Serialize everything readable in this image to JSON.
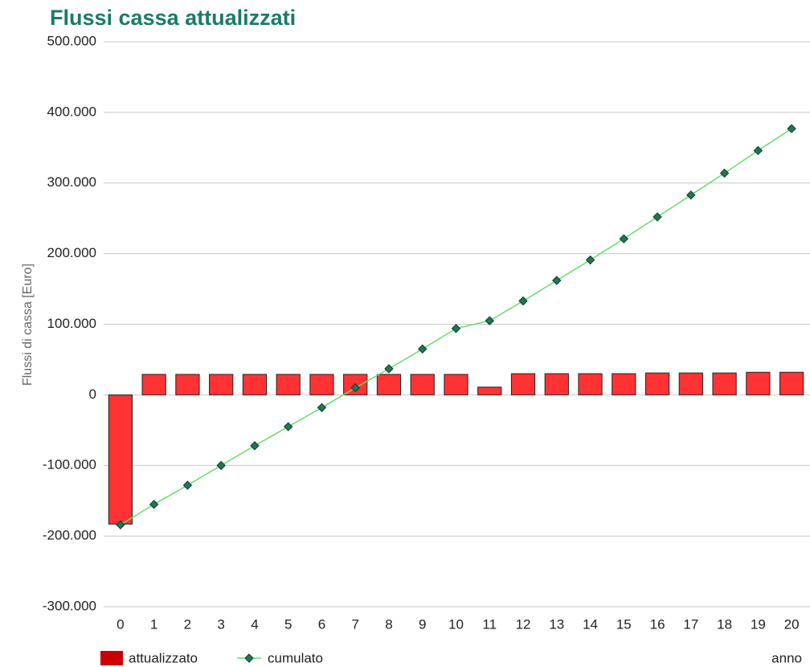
{
  "chart_data": {
    "type": "bar_line",
    "title": "Flussi cassa attualizzati",
    "y_label": "Flussi di cassa [Euro]",
    "x_label": "anno",
    "categories": [
      "0",
      "1",
      "2",
      "3",
      "4",
      "5",
      "6",
      "7",
      "8",
      "9",
      "10",
      "11",
      "12",
      "13",
      "14",
      "15",
      "16",
      "17",
      "18",
      "19",
      "20"
    ],
    "series": [
      {
        "name": "attualizzato",
        "type": "bar",
        "color": "#ff3333",
        "values": [
          -183000,
          29000,
          29000,
          29000,
          29000,
          29000,
          29000,
          29000,
          29000,
          29000,
          29000,
          11000,
          30000,
          30000,
          30000,
          30000,
          31000,
          31000,
          31000,
          32000,
          32000
        ]
      },
      {
        "name": "cumulato",
        "type": "line",
        "color": "#66dd66",
        "marker_color": "#1f7a4a",
        "values": [
          -184000,
          -155000,
          -128000,
          -100000,
          -72000,
          -45000,
          -18000,
          10000,
          37000,
          65000,
          94000,
          105000,
          133000,
          162000,
          191000,
          221000,
          252000,
          283000,
          314000,
          346000,
          377000
        ]
      }
    ],
    "ylim": [
      -300000,
      500000
    ],
    "yticks": [
      {
        "value": -300000,
        "label": "-300.000"
      },
      {
        "value": -200000,
        "label": "-200.000"
      },
      {
        "value": -100000,
        "label": "-100.000"
      },
      0,
      {
        "value": 100000,
        "label": "100.000"
      },
      {
        "value": 200000,
        "label": "200.000"
      },
      {
        "value": 300000,
        "label": "300.000"
      },
      {
        "value": 400000,
        "label": "400.000"
      },
      {
        "value": 500000,
        "label": "500.000"
      }
    ],
    "grid": true
  }
}
